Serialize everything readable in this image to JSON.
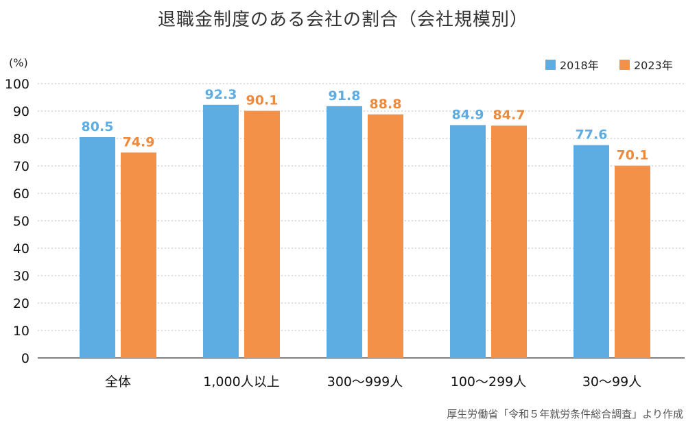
{
  "title": "退職金制度のある会社の割合（会社規模別）",
  "source": "厚生労働省「令和５年就労条件総合調査」より作成",
  "colors": {
    "series_2018": "#5dade2",
    "series_2023": "#f39148",
    "label_2018": "#5dade2",
    "label_2023": "#ee8a3c"
  },
  "chart_data": {
    "type": "bar",
    "title": "退職金制度のある会社の割合（会社規模別）",
    "ylabel": "(%)",
    "xlabel": "",
    "categories": [
      "全体",
      "1,000人以上",
      "300～999人",
      "100～299人",
      "30～99人"
    ],
    "series": [
      {
        "name": "2018年",
        "values": [
          80.5,
          92.3,
          91.8,
          84.9,
          77.6
        ]
      },
      {
        "name": "2023年",
        "values": [
          74.9,
          90.1,
          88.8,
          84.7,
          70.1
        ]
      }
    ],
    "ylim": [
      0,
      100
    ],
    "yticks": [
      0,
      10,
      20,
      30,
      40,
      50,
      60,
      70,
      80,
      90,
      100
    ],
    "grid": true,
    "legend_position": "top-right"
  }
}
